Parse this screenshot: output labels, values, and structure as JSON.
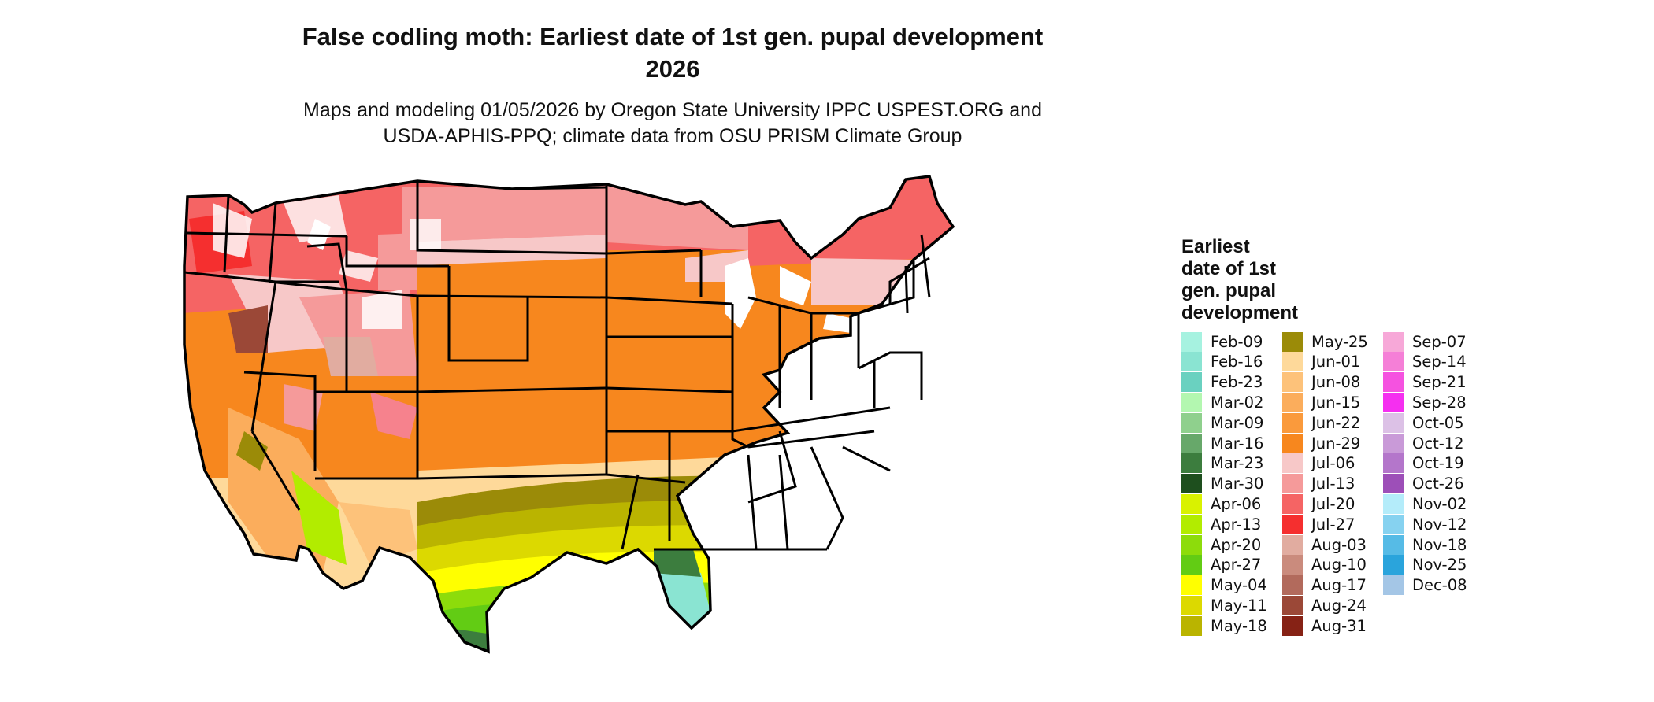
{
  "title_line1": "False codling moth: Earliest date of 1st gen. pupal development",
  "title_line2": "2026",
  "subtitle_line1": "Maps and modeling 01/05/2026 by Oregon State University IPPC USPEST.ORG and",
  "subtitle_line2": "USDA-APHIS-PPQ; climate data from OSU PRISM Climate Group",
  "legend": {
    "title_lines": [
      "Earliest",
      "date of 1st",
      "gen. pupal",
      "development"
    ],
    "columns": [
      [
        {
          "label": "Feb-09",
          "color": "#a6f2e0"
        },
        {
          "label": "Feb-16",
          "color": "#8ae4d2"
        },
        {
          "label": "Feb-23",
          "color": "#6ad1c0"
        },
        {
          "label": "Mar-02",
          "color": "#b3f7b0"
        },
        {
          "label": "Mar-09",
          "color": "#8fd08d"
        },
        {
          "label": "Mar-16",
          "color": "#67a86a"
        },
        {
          "label": "Mar-23",
          "color": "#3c7d3e"
        },
        {
          "label": "Mar-30",
          "color": "#1e4f1e"
        },
        {
          "label": "Apr-06",
          "color": "#d9f200"
        },
        {
          "label": "Apr-13",
          "color": "#b2ec00"
        },
        {
          "label": "Apr-20",
          "color": "#8ddc0b"
        },
        {
          "label": "Apr-27",
          "color": "#62cc14"
        },
        {
          "label": "May-04",
          "color": "#ffff00"
        },
        {
          "label": "May-11",
          "color": "#dcd900"
        },
        {
          "label": "May-18",
          "color": "#bab400"
        }
      ],
      [
        {
          "label": "May-25",
          "color": "#9b8b08"
        },
        {
          "label": "Jun-01",
          "color": "#fed99a"
        },
        {
          "label": "Jun-08",
          "color": "#fdc27a"
        },
        {
          "label": "Jun-15",
          "color": "#fbad5c"
        },
        {
          "label": "Jun-22",
          "color": "#fa9a3c"
        },
        {
          "label": "Jun-29",
          "color": "#f7871e"
        },
        {
          "label": "Jul-06",
          "color": "#f7c8c8"
        },
        {
          "label": "Jul-13",
          "color": "#f59a9a"
        },
        {
          "label": "Jul-20",
          "color": "#f56464"
        },
        {
          "label": "Jul-27",
          "color": "#f52f2f"
        },
        {
          "label": "Aug-03",
          "color": "#e1aca0"
        },
        {
          "label": "Aug-10",
          "color": "#ca8b7d"
        },
        {
          "label": "Aug-17",
          "color": "#b26a5c"
        },
        {
          "label": "Aug-24",
          "color": "#9b4837"
        },
        {
          "label": "Aug-31",
          "color": "#862215"
        }
      ],
      [
        {
          "label": "Sep-07",
          "color": "#f7a8d8"
        },
        {
          "label": "Sep-14",
          "color": "#f57fd7"
        },
        {
          "label": "Sep-21",
          "color": "#f552e0"
        },
        {
          "label": "Sep-28",
          "color": "#f52ff0"
        },
        {
          "label": "Oct-05",
          "color": "#dcc1e6"
        },
        {
          "label": "Oct-12",
          "color": "#c99ad8"
        },
        {
          "label": "Oct-19",
          "color": "#b476cb"
        },
        {
          "label": "Oct-26",
          "color": "#9d4fb8"
        },
        {
          "label": "Nov-02",
          "color": "#b4ecfa"
        },
        {
          "label": "Nov-12",
          "color": "#86d2f0"
        },
        {
          "label": "Nov-18",
          "color": "#56bbe6"
        },
        {
          "label": "Nov-25",
          "color": "#2aa4dc"
        },
        {
          "label": "Dec-08",
          "color": "#a4c6e6"
        }
      ]
    ]
  }
}
